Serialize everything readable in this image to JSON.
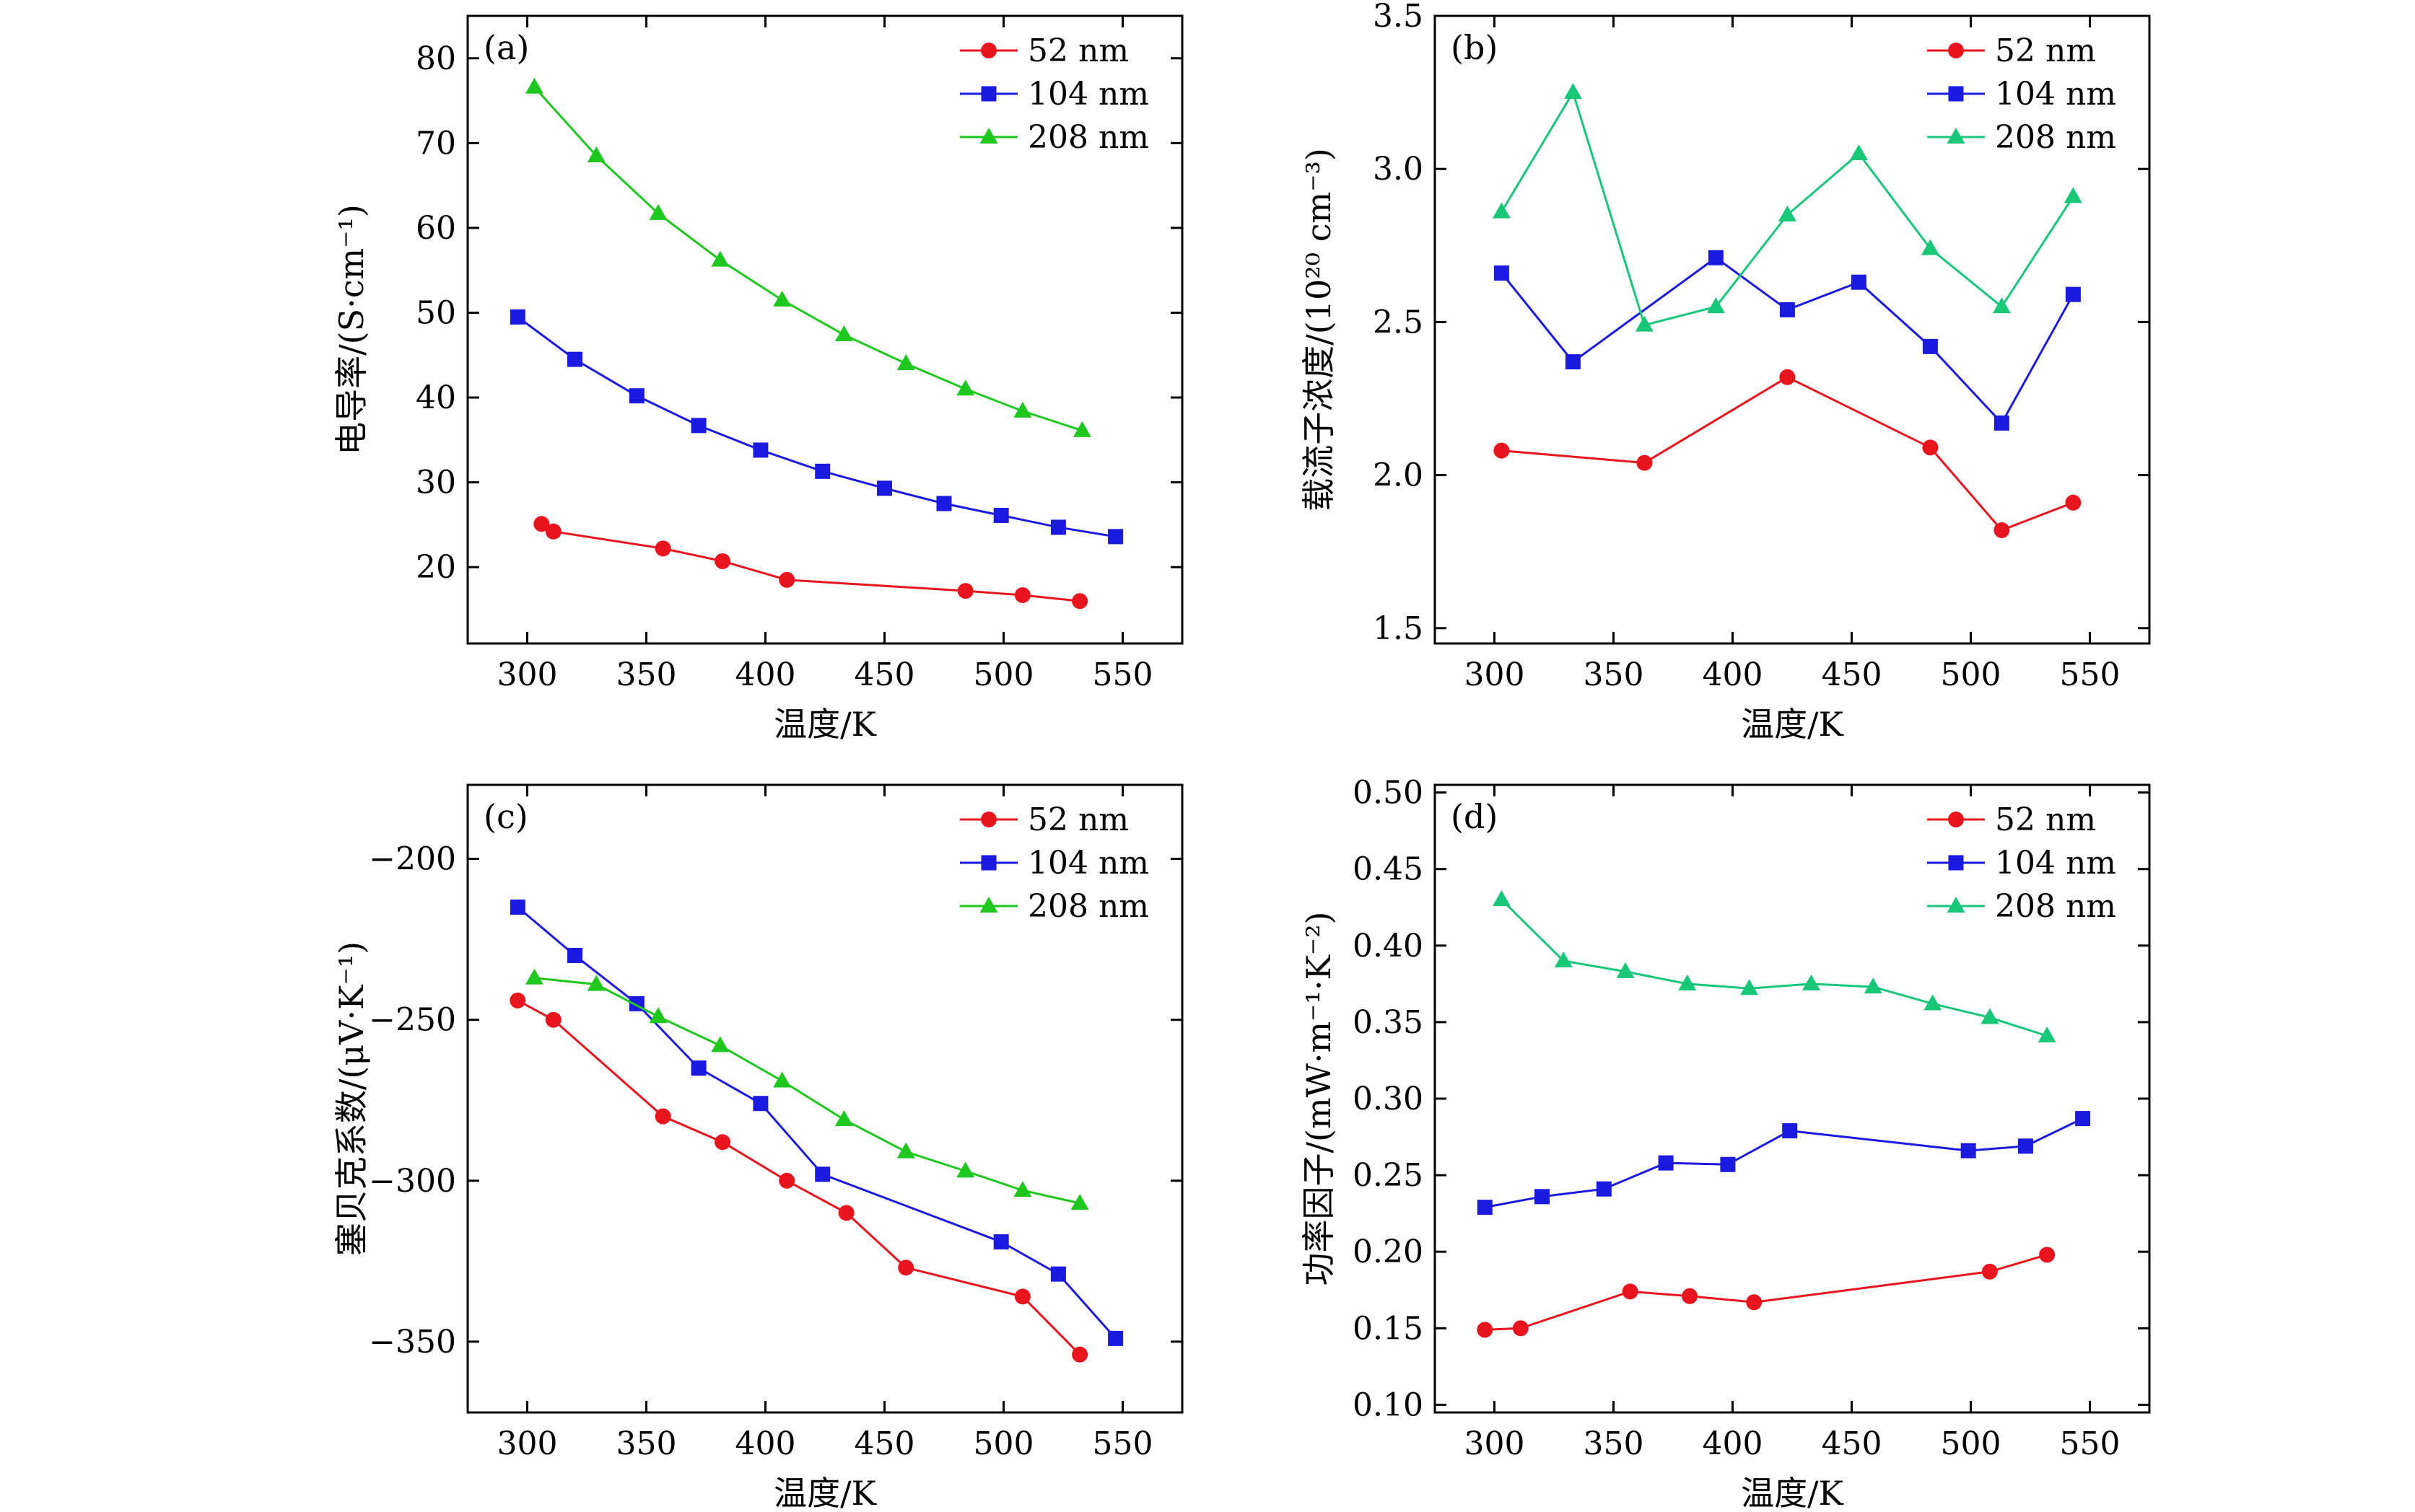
{
  "chart_data": [
    {
      "panel": "(a)",
      "type": "line",
      "xlabel": "温度/K",
      "ylabel": "电导率/(S·cm⁻¹)",
      "xlim": [
        275,
        575
      ],
      "ylim": [
        11,
        85
      ],
      "xticks": [
        300,
        350,
        400,
        450,
        500,
        550
      ],
      "yticks": [
        20,
        30,
        40,
        50,
        60,
        70,
        80
      ],
      "legend": "top-right",
      "series": [
        {
          "name": "52 nm",
          "color": "#e8141e",
          "marker": "circle",
          "x": [
            306,
            311,
            357,
            382,
            409,
            484,
            508,
            532
          ],
          "y": [
            25.1,
            24.2,
            22.2,
            20.7,
            18.5,
            17.2,
            16.7,
            16.0
          ]
        },
        {
          "name": "104 nm",
          "color": "#1a1ae0",
          "marker": "square",
          "x": [
            296,
            320,
            346,
            372,
            398,
            424,
            450,
            475,
            499,
            523,
            547
          ],
          "y": [
            49.5,
            44.5,
            40.2,
            36.7,
            33.8,
            31.3,
            29.3,
            27.5,
            26.1,
            24.7,
            23.6
          ]
        },
        {
          "name": "208 nm",
          "color": "#1ec81e",
          "marker": "triangle",
          "x": [
            303,
            329,
            355,
            381,
            407,
            433,
            459,
            484,
            508,
            533
          ],
          "y": [
            76.6,
            68.5,
            61.7,
            56.2,
            51.5,
            47.4,
            44.0,
            41.0,
            38.4,
            36.1
          ]
        }
      ]
    },
    {
      "panel": "(b)",
      "type": "line",
      "xlabel": "温度/K",
      "ylabel": "载流子浓度/(10²⁰ cm⁻³)",
      "xlim": [
        275,
        575
      ],
      "ylim": [
        1.45,
        3.5
      ],
      "xticks": [
        300,
        350,
        400,
        450,
        500,
        550
      ],
      "yticks": [
        1.5,
        2.0,
        2.5,
        3.0,
        3.5
      ],
      "ytick_labels": [
        "1.5",
        "2.0",
        "2.5",
        "3.0",
        "3.5"
      ],
      "legend": "top-right",
      "series": [
        {
          "name": "52 nm",
          "color": "#e8141e",
          "marker": "circle",
          "x": [
            303,
            363,
            423,
            483,
            513,
            543
          ],
          "y": [
            2.08,
            2.04,
            2.32,
            2.09,
            1.82,
            1.91
          ]
        },
        {
          "name": "104 nm",
          "color": "#1a1ae0",
          "marker": "square",
          "x": [
            303,
            333,
            393,
            423,
            453,
            483,
            513,
            543
          ],
          "y": [
            2.66,
            2.37,
            2.71,
            2.54,
            2.63,
            2.42,
            2.17,
            2.59
          ]
        },
        {
          "name": "208 nm",
          "color": "#18c878",
          "marker": "triangle",
          "x": [
            303,
            333,
            363,
            393,
            423,
            453,
            483,
            513,
            543
          ],
          "y": [
            2.86,
            3.25,
            2.49,
            2.55,
            2.85,
            3.05,
            2.74,
            2.55,
            2.91
          ]
        }
      ]
    },
    {
      "panel": "(c)",
      "type": "line",
      "xlabel": "温度/K",
      "ylabel": "塞贝克系数/(μV·K⁻¹)",
      "xlim": [
        275,
        575
      ],
      "ylim": [
        -372,
        -177
      ],
      "xticks": [
        300,
        350,
        400,
        450,
        500,
        550
      ],
      "yticks": [
        -350,
        -300,
        -250,
        -200
      ],
      "ytick_labels": [
        "−350",
        "−300",
        "−250",
        "−200"
      ],
      "legend": "top-right",
      "series": [
        {
          "name": "52 nm",
          "color": "#e8141e",
          "marker": "circle",
          "x": [
            296,
            311,
            357,
            382,
            409,
            434,
            459,
            508,
            532
          ],
          "y": [
            -244,
            -250,
            -280,
            -288,
            -300,
            -310,
            -327,
            -336,
            -354
          ]
        },
        {
          "name": "104 nm",
          "color": "#1a1ae0",
          "marker": "square",
          "x": [
            296,
            320,
            346,
            372,
            398,
            424,
            499,
            523,
            547
          ],
          "y": [
            -215,
            -230,
            -245,
            -265,
            -276,
            -298,
            -319,
            -329,
            -349
          ]
        },
        {
          "name": "208 nm",
          "color": "#1ec81e",
          "marker": "triangle",
          "x": [
            303,
            329,
            355,
            381,
            407,
            433,
            459,
            484,
            508,
            532
          ],
          "y": [
            -237,
            -239,
            -249,
            -258,
            -269,
            -281,
            -291,
            -297,
            -303,
            -307
          ]
        }
      ]
    },
    {
      "panel": "(d)",
      "type": "line",
      "xlabel": "温度/K",
      "ylabel": "功率因子/(mW·m⁻¹·K⁻²)",
      "xlim": [
        275,
        575
      ],
      "ylim": [
        0.095,
        0.505
      ],
      "xticks": [
        300,
        350,
        400,
        450,
        500,
        550
      ],
      "yticks": [
        0.1,
        0.15,
        0.2,
        0.25,
        0.3,
        0.35,
        0.4,
        0.45,
        0.5
      ],
      "ytick_labels": [
        "0.10",
        "0.15",
        "0.20",
        "0.25",
        "0.30",
        "0.35",
        "0.40",
        "0.45",
        "0.50"
      ],
      "legend": "top-right",
      "series": [
        {
          "name": "52 nm",
          "color": "#e8141e",
          "marker": "circle",
          "x": [
            296,
            311,
            357,
            382,
            409,
            508,
            532
          ],
          "y": [
            0.149,
            0.15,
            0.174,
            0.171,
            0.167,
            0.187,
            0.198
          ]
        },
        {
          "name": "104 nm",
          "color": "#1a1ae0",
          "marker": "square",
          "x": [
            296,
            320,
            346,
            372,
            398,
            424,
            499,
            523,
            547
          ],
          "y": [
            0.229,
            0.236,
            0.241,
            0.258,
            0.257,
            0.279,
            0.266,
            0.269,
            0.287
          ]
        },
        {
          "name": "208 nm",
          "color": "#18c878",
          "marker": "triangle",
          "x": [
            303,
            329,
            355,
            381,
            407,
            433,
            459,
            484,
            508,
            532
          ],
          "y": [
            0.43,
            0.39,
            0.383,
            0.375,
            0.372,
            0.375,
            0.373,
            0.362,
            0.353,
            0.341
          ]
        }
      ]
    }
  ]
}
